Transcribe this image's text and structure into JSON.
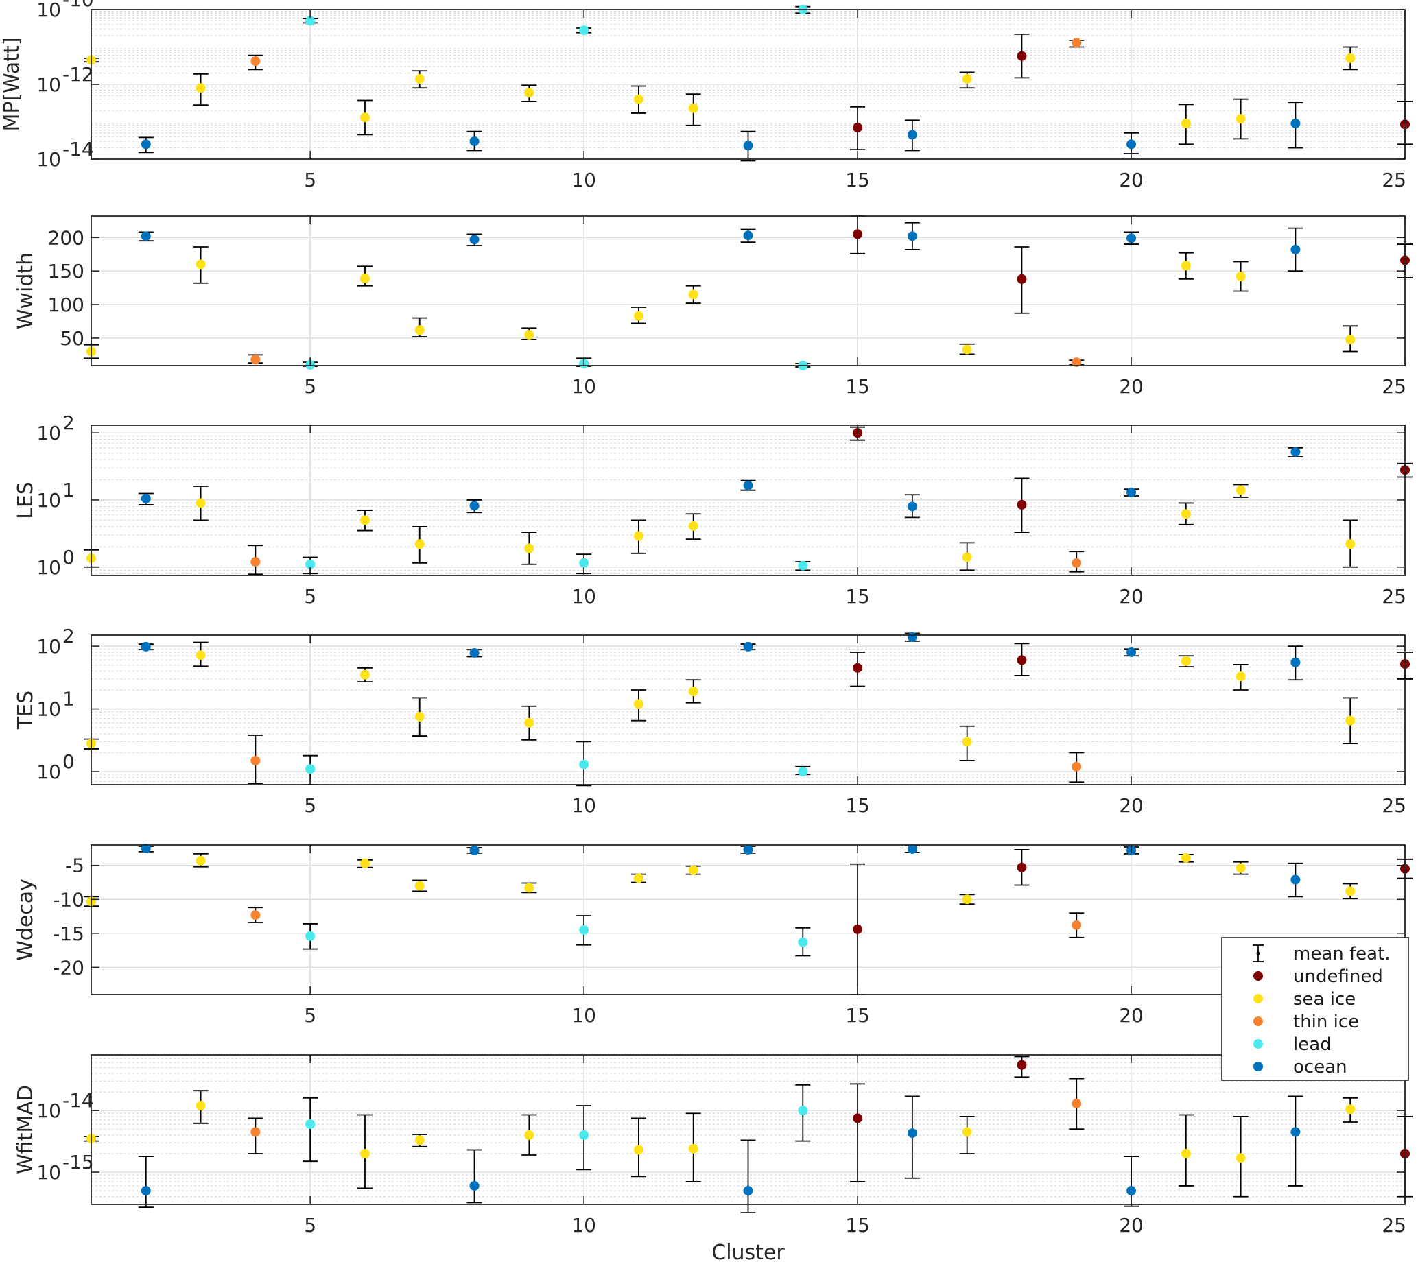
{
  "chart_data": {
    "type": "scatter",
    "xlabel": "Cluster",
    "x": [
      1,
      2,
      3,
      4,
      5,
      6,
      7,
      8,
      9,
      10,
      11,
      12,
      13,
      14,
      15,
      16,
      17,
      18,
      19,
      20,
      21,
      22,
      23,
      24,
      25
    ],
    "xlim": [
      1,
      25
    ],
    "xticks": [
      5,
      10,
      15,
      20,
      25
    ],
    "class_per_cluster": [
      "sea ice",
      "ocean",
      "sea ice",
      "thin ice",
      "lead",
      "sea ice",
      "sea ice",
      "ocean",
      "sea ice",
      "lead",
      "sea ice",
      "sea ice",
      "ocean",
      "lead",
      "undefined",
      "ocean",
      "sea ice",
      "undefined",
      "thin ice",
      "ocean",
      "sea ice",
      "sea ice",
      "ocean",
      "sea ice",
      "undefined"
    ],
    "class_colors": {
      "undefined": "#7f0000",
      "sea ice": "#ffe119",
      "thin ice": "#f58231",
      "lead": "#4be8ee",
      "ocean": "#0072bd"
    },
    "legend": {
      "position": "right",
      "entries": [
        "mean feat.",
        "undefined",
        "sea ice",
        "thin ice",
        "lead",
        "ocean"
      ]
    },
    "grid": true,
    "panels": [
      {
        "ylabel": "MP[Watt]",
        "scale": "log",
        "ylim": [
          1e-14,
          1e-10
        ],
        "yticks": [
          1e-14,
          1e-12,
          1e-10
        ],
        "ytick_labels": [
          {
            "base": "10",
            "exp": "-14"
          },
          {
            "base": "10",
            "exp": "-12"
          },
          {
            "base": "10",
            "exp": "-10"
          }
        ],
        "values": [
          4.5e-12,
          2.5e-14,
          8e-13,
          4.2e-12,
          5e-11,
          1.3e-13,
          1.4e-12,
          3e-14,
          6e-13,
          2.8e-11,
          4e-13,
          2.3e-13,
          2.3e-14,
          1e-10,
          7e-14,
          4.5e-14,
          1.4e-12,
          5.7e-12,
          1.3e-11,
          2.5e-14,
          9e-14,
          1.2e-13,
          9e-14,
          5e-12,
          8.5e-14
        ],
        "lower": [
          4e-12,
          1.5e-14,
          2.8e-13,
          2.5e-12,
          4.4e-11,
          4.5e-14,
          8e-13,
          1.7e-14,
          3.5e-13,
          2.4e-11,
          1.7e-13,
          8e-14,
          9e-15,
          8e-11,
          1.8e-14,
          1.7e-14,
          8e-13,
          1.5e-12,
          1e-11,
          1.4e-14,
          2.5e-14,
          3.5e-14,
          2e-14,
          2.5e-12,
          2.5e-14
        ],
        "upper": [
          5e-12,
          3.8e-14,
          1.9e-12,
          6e-12,
          5.8e-11,
          3.7e-13,
          2.3e-12,
          5.5e-14,
          9.5e-13,
          3.2e-11,
          9e-13,
          5.5e-13,
          5.5e-14,
          1.2e-10,
          2.5e-13,
          1.1e-13,
          2.1e-12,
          2.2e-11,
          1.5e-11,
          5e-14,
          2.9e-13,
          4e-13,
          3.3e-13,
          1e-11,
          3.5e-13
        ]
      },
      {
        "ylabel": "Wwidth",
        "scale": "linear",
        "ylim": [
          9,
          232
        ],
        "yticks": [
          50,
          100,
          150,
          200
        ],
        "ytick_labels": [
          "50",
          "100",
          "150",
          "200"
        ],
        "values": [
          30,
          202,
          160,
          18,
          10,
          139,
          62,
          197,
          55,
          12,
          83,
          115,
          203,
          9,
          205,
          202,
          33,
          138,
          14,
          199,
          158,
          142,
          182,
          48,
          166
        ],
        "lower": [
          20,
          195,
          132,
          13,
          8,
          128,
          52,
          188,
          48,
          8,
          72,
          102,
          193,
          7,
          176,
          182,
          26,
          87,
          11,
          190,
          138,
          120,
          150,
          30,
          140
        ],
        "upper": [
          40,
          208,
          186,
          25,
          14,
          157,
          80,
          205,
          65,
          20,
          96,
          128,
          212,
          12,
          232,
          222,
          41,
          186,
          17,
          208,
          177,
          164,
          214,
          68,
          190
        ]
      },
      {
        "ylabel": "LES",
        "scale": "log",
        "ylim": [
          0.75,
          130
        ],
        "yticks": [
          1,
          10,
          100
        ],
        "ytick_labels": [
          {
            "base": "10",
            "exp": "0"
          },
          {
            "base": "10",
            "exp": "1"
          },
          {
            "base": "10",
            "exp": "2"
          }
        ],
        "values": [
          1.35,
          10.5,
          9,
          1.2,
          1.1,
          5,
          2.2,
          8.2,
          1.9,
          1.15,
          2.9,
          4.1,
          16.5,
          1.05,
          100,
          8,
          1.4,
          8.5,
          1.15,
          13,
          6.2,
          14,
          52,
          2.2,
          28
        ],
        "lower": [
          1.0,
          8.5,
          5,
          0.78,
          0.8,
          3.5,
          1.15,
          6.5,
          1.1,
          0.8,
          1.6,
          2.6,
          14,
          0.9,
          78,
          5.5,
          0.9,
          3.3,
          0.85,
          11.5,
          4.3,
          11,
          44,
          1.0,
          22
        ],
        "upper": [
          1.8,
          12.5,
          16,
          2.1,
          1.4,
          7,
          4,
          10,
          3.3,
          1.55,
          5,
          6.2,
          19.5,
          1.2,
          122,
          12,
          2.3,
          21,
          1.7,
          14.5,
          9,
          17,
          60,
          5,
          35
        ]
      },
      {
        "ylabel": "TES",
        "scale": "log",
        "ylim": [
          0.62,
          150
        ],
        "yticks": [
          1,
          10,
          100
        ],
        "ytick_labels": [
          {
            "base": "10",
            "exp": "0"
          },
          {
            "base": "10",
            "exp": "1"
          },
          {
            "base": "10",
            "exp": "2"
          }
        ],
        "values": [
          2.8,
          98,
          72,
          1.5,
          1.1,
          35,
          7.5,
          78,
          6,
          1.3,
          12,
          19,
          98,
          1.0,
          45,
          140,
          3,
          60,
          1.2,
          80,
          58,
          33,
          55,
          6.5,
          52
        ],
        "lower": [
          2.3,
          88,
          48,
          0.65,
          0.62,
          27,
          3.7,
          68,
          3.2,
          0.6,
          6.5,
          12.5,
          88,
          0.9,
          23,
          120,
          1.5,
          34,
          0.68,
          70,
          47,
          20,
          29,
          2.8,
          30
        ],
        "upper": [
          3.3,
          108,
          115,
          3.8,
          1.8,
          45,
          15,
          88,
          11,
          3,
          20,
          29,
          108,
          1.2,
          80,
          160,
          5.3,
          110,
          2.0,
          90,
          70,
          51,
          100,
          15,
          80
        ]
      },
      {
        "ylabel": "Wdecay",
        "scale": "linear",
        "ylim": [
          -24,
          -2
        ],
        "yticks": [
          -20,
          -15,
          -10,
          -5
        ],
        "ytick_labels": [
          "-20",
          "-15",
          "-10",
          "-5"
        ],
        "values": [
          -10.3,
          -2.5,
          -4.3,
          -12.3,
          -15.4,
          -4.7,
          -8.0,
          -2.8,
          -8.3,
          -14.5,
          -6.9,
          -5.7,
          -2.7,
          -16.3,
          -14.4,
          -2.6,
          -10.0,
          -5.3,
          -13.8,
          -2.8,
          -3.9,
          -5.4,
          -7.1,
          -8.8,
          -5.5
        ],
        "lower": [
          -11.0,
          -3.0,
          -5.2,
          -13.4,
          -17.3,
          -5.3,
          -8.8,
          -3.2,
          -9.0,
          -16.7,
          -7.5,
          -6.3,
          -3.2,
          -18.3,
          -24.0,
          -3.1,
          -10.7,
          -7.9,
          -15.6,
          -3.3,
          -4.5,
          -6.3,
          -9.6,
          -9.9,
          -6.9
        ],
        "upper": [
          -9.6,
          -2.2,
          -3.3,
          -11.2,
          -13.6,
          -4.2,
          -7.2,
          -2.4,
          -7.6,
          -12.4,
          -6.3,
          -5.1,
          -2.2,
          -14.2,
          -4.8,
          -2.1,
          -9.3,
          -2.7,
          -12.0,
          -2.3,
          -3.4,
          -4.5,
          -4.7,
          -7.7,
          -4.1
        ]
      },
      {
        "ylabel": "WfitMAD",
        "scale": "log",
        "ylim": [
          3e-16,
          8e-14
        ],
        "yticks": [
          1e-15,
          1e-14
        ],
        "ytick_labels": [
          {
            "base": "10",
            "exp": "-15"
          },
          {
            "base": "10",
            "exp": "-14"
          }
        ],
        "values": [
          3.5e-15,
          5e-16,
          1.2e-14,
          4.5e-15,
          6e-15,
          2e-15,
          3.3e-15,
          6e-16,
          4e-15,
          4e-15,
          2.3e-15,
          2.4e-15,
          5e-16,
          1e-14,
          7.5e-15,
          4.3e-15,
          4.5e-15,
          5.5e-14,
          1.3e-14,
          5e-16,
          2e-15,
          1.7e-15,
          4.5e-15,
          1.05e-14,
          2e-15
        ],
        "lower": [
          3.2e-15,
          2.7e-16,
          6.2e-15,
          2e-15,
          1.5e-15,
          5.5e-16,
          2.6e-15,
          3.2e-16,
          1.9e-15,
          1.1e-15,
          8.5e-16,
          7e-16,
          2.2e-16,
          3.2e-15,
          7e-16,
          8e-16,
          2e-15,
          3.5e-14,
          5e-15,
          2.8e-16,
          6e-16,
          4e-16,
          6e-16,
          6.5e-15,
          4e-16
        ],
        "upper": [
          3.8e-15,
          1.8e-15,
          2.1e-14,
          7.5e-15,
          1.6e-14,
          8.5e-15,
          4.1e-15,
          2.3e-15,
          8.5e-15,
          1.2e-14,
          7.5e-15,
          9e-15,
          3.3e-15,
          2.6e-14,
          2.7e-14,
          1.7e-14,
          8e-15,
          7.5e-14,
          3.3e-14,
          1.8e-15,
          8.5e-15,
          8e-15,
          1.7e-14,
          1.6e-14,
          8e-15
        ]
      }
    ]
  }
}
